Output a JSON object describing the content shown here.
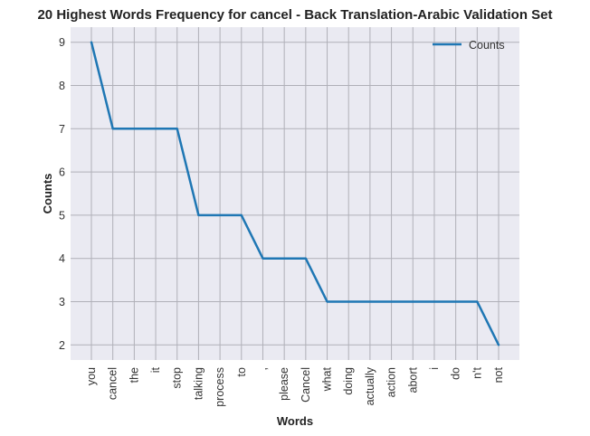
{
  "chart_data": {
    "type": "line",
    "title": "20 Highest Words Frequency for cancel - Back Translation-Arabic Validation Set",
    "xlabel": "Words",
    "ylabel": "Counts",
    "categories": [
      "you",
      "cancel",
      "the",
      "it",
      "stop",
      "talking",
      "process",
      "to",
      ",",
      "please",
      "Cancel",
      "what",
      "doing",
      "actually",
      "action",
      "abort",
      "i",
      "do",
      "n't",
      "not"
    ],
    "series": [
      {
        "name": "Counts",
        "values": [
          9,
          7,
          7,
          7,
          7,
          5,
          5,
          5,
          4,
          4,
          4,
          3,
          3,
          3,
          3,
          3,
          3,
          3,
          3,
          2
        ]
      }
    ],
    "ylim": [
      1.65,
      9.35
    ],
    "yticks": [
      2,
      3,
      4,
      5,
      6,
      7,
      8,
      9
    ],
    "grid": true,
    "legend": "top-right",
    "colors": {
      "line": "#1f77b4",
      "plot_bg": "#eaeaf2",
      "grid": "#b0b0b8"
    }
  }
}
